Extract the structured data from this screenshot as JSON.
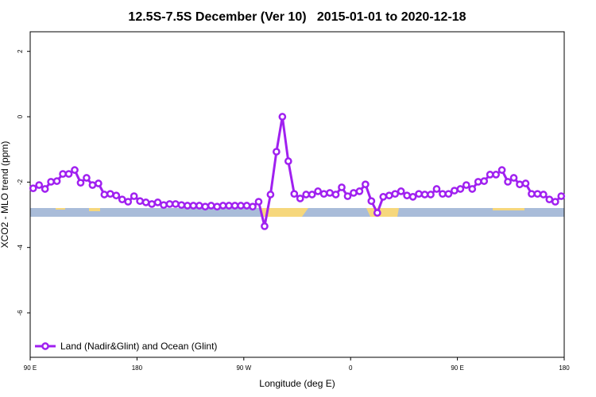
{
  "chart_data": {
    "type": "line",
    "title": "12.5S-7.5S December (Ver 10)   2015-01-01 to 2020-12-18",
    "x_label": "Longitude (deg E)",
    "y_label": "XCO2 - MLO trend (ppm)",
    "x": [
      92.5,
      97.5,
      102.5,
      107.5,
      112.5,
      117.5,
      122.5,
      127.5,
      132.5,
      137.5,
      142.5,
      147.5,
      152.5,
      157.5,
      162.5,
      167.5,
      172.5,
      177.5,
      182.5,
      187.5,
      192.5,
      197.5,
      202.5,
      207.5,
      212.5,
      217.5,
      222.5,
      227.5,
      232.5,
      237.5,
      242.5,
      247.5,
      252.5,
      257.5,
      262.5,
      267.5,
      272.5,
      277.5,
      282.5,
      287.5,
      292.5,
      297.5,
      302.5,
      307.5,
      312.5,
      317.5,
      322.5,
      327.5,
      332.5,
      337.5,
      342.5,
      347.5,
      352.5,
      357.5,
      362.5,
      367.5,
      372.5,
      377.5,
      382.5,
      387.5,
      392.5,
      397.5,
      402.5,
      407.5,
      412.5,
      417.5,
      422.5,
      427.5,
      432.5,
      437.5,
      442.5,
      447.5,
      452.5,
      457.5,
      462.5,
      467.5,
      472.5,
      477.5,
      482.5,
      487.5,
      492.5,
      497.5,
      502.5,
      507.5,
      512.5,
      517.5,
      522.5,
      527.5,
      532.5,
      537.5
    ],
    "series": [
      {
        "name": "Land (Nadir&Glint) and Ocean (Glint)",
        "color": "#a020f0",
        "values": [
          -2.19,
          -2.09,
          -2.21,
          -1.99,
          -1.97,
          -1.75,
          -1.75,
          -1.63,
          -2.02,
          -1.87,
          -2.09,
          -2.04,
          -2.38,
          -2.36,
          -2.41,
          -2.53,
          -2.6,
          -2.43,
          -2.58,
          -2.62,
          -2.67,
          -2.62,
          -2.7,
          -2.67,
          -2.67,
          -2.7,
          -2.72,
          -2.72,
          -2.72,
          -2.75,
          -2.72,
          -2.75,
          -2.72,
          -2.72,
          -2.72,
          -2.72,
          -2.72,
          -2.75,
          -2.6,
          -3.35,
          -2.38,
          -1.07,
          0.0,
          -1.36,
          -2.36,
          -2.5,
          -2.38,
          -2.38,
          -2.28,
          -2.36,
          -2.33,
          -2.38,
          -2.16,
          -2.43,
          -2.33,
          -2.28,
          -2.07,
          -2.58,
          -2.94,
          -2.45,
          -2.41,
          -2.36,
          -2.28,
          -2.41,
          -2.45,
          -2.36,
          -2.38,
          -2.38,
          -2.21,
          -2.36,
          -2.36,
          -2.26,
          -2.21,
          -2.09,
          -2.21,
          -1.99,
          -1.97,
          -1.77,
          -1.77,
          -1.63,
          -1.99,
          -1.87,
          -2.07,
          -2.04,
          -2.36,
          -2.36,
          -2.38,
          -2.53,
          -2.6,
          -2.43
        ]
      }
    ],
    "xlim": [
      90,
      540
    ],
    "xticks": [
      {
        "value": 90,
        "label": "90 E"
      },
      {
        "value": 180,
        "label": "180"
      },
      {
        "value": 270,
        "label": "90 W"
      },
      {
        "value": 360,
        "label": "0"
      },
      {
        "value": 450,
        "label": "90 E"
      },
      {
        "value": 540,
        "label": "180"
      }
    ],
    "ylim": [
      -7.36,
      2.6
    ],
    "yticks": [
      2,
      0,
      -2,
      -4,
      -6
    ],
    "legend": "bottom-left"
  }
}
